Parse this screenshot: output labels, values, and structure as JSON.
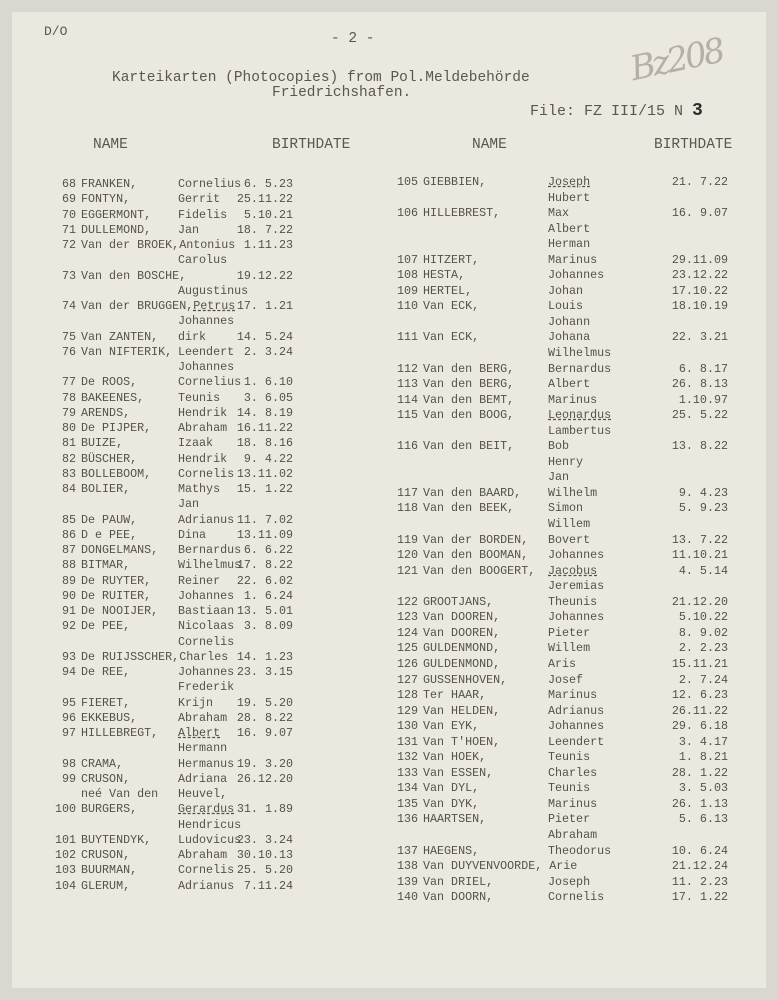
{
  "header": {
    "ref": "D/O",
    "page": "- 2 -",
    "title_line1": "Karteikarten (Photocopies) from Pol.Meldebehörde",
    "title_line2": "Friedrichshafen.",
    "file_label": "File: FZ III/15 N",
    "file_number": "3",
    "handwritten_note": "Bz208"
  },
  "columns": {
    "name": "NAME",
    "birthdate": "BIRTHDATE"
  },
  "left": [
    {
      "no": "68",
      "surname": "FRANKEN,",
      "given": "Cornelius",
      "date": "6. 5.23"
    },
    {
      "no": "69",
      "surname": "FONTYN,",
      "given": "Gerrit",
      "date": "25.11.22"
    },
    {
      "no": "70",
      "surname": "EGGERMONT,",
      "given": "Fidelis",
      "date": "5.10.21"
    },
    {
      "no": "71",
      "surname": "DULLEMOND,",
      "given": "Jan",
      "date": "18. 7.22"
    },
    {
      "no": "72",
      "surname": "Van der BROEK,",
      "given": "Antonius",
      "date": "1.11.23"
    },
    {
      "no": "",
      "surname": "",
      "given": "Carolus",
      "date": ""
    },
    {
      "no": "73",
      "surname": "Van den BOSCHE,",
      "given": "",
      "date": "19.12.22"
    },
    {
      "no": "",
      "surname": "",
      "given": "Augustinus",
      "date": ""
    },
    {
      "no": "74",
      "surname": "Van der BRUGGEN,",
      "given": "Petrus",
      "date": "17. 1.21",
      "underlined": true
    },
    {
      "no": "",
      "surname": "",
      "given": "Johannes",
      "date": ""
    },
    {
      "no": "75",
      "surname": "Van ZANTEN,",
      "given": "dirk",
      "date": "14. 5.24"
    },
    {
      "no": "76",
      "surname": "Van NIFTERIK,",
      "given": "Leendert",
      "date": "2. 3.24"
    },
    {
      "no": "",
      "surname": "",
      "given": "Johannes",
      "date": ""
    },
    {
      "no": "77",
      "surname": "De ROOS,",
      "given": "Cornelius",
      "date": "1. 6.10"
    },
    {
      "no": "78",
      "surname": "BAKEENES,",
      "given": "Teunis",
      "date": "3. 6.05"
    },
    {
      "no": "79",
      "surname": "ARENDS,",
      "given": "Hendrik",
      "date": "14. 8.19"
    },
    {
      "no": "80",
      "surname": "De PIJPER,",
      "given": "Abraham",
      "date": "16.11.22"
    },
    {
      "no": "81",
      "surname": "BUIZE,",
      "given": "Izaak",
      "date": "18. 8.16"
    },
    {
      "no": "82",
      "surname": "BÜSCHER,",
      "given": "Hendrik",
      "date": "9. 4.22"
    },
    {
      "no": "83",
      "surname": "BOLLEBOOM,",
      "given": "Cornelis",
      "date": "13.11.02"
    },
    {
      "no": "84",
      "surname": "BOLIER,",
      "given": "Mathys",
      "date": "15. 1.22"
    },
    {
      "no": "",
      "surname": "",
      "given": "Jan",
      "date": ""
    },
    {
      "no": "85",
      "surname": "De PAUW,",
      "given": "Adrianus",
      "date": "11. 7.02"
    },
    {
      "no": "86",
      "surname": "D e PEE,",
      "given": "Dina",
      "date": "13.11.09"
    },
    {
      "no": "87",
      "surname": "DONGELMANS,",
      "given": "Bernardus",
      "date": "6. 6.22"
    },
    {
      "no": "88",
      "surname": "BITMAR,",
      "given": "Wilhelmus",
      "date": "17. 8.22"
    },
    {
      "no": "89",
      "surname": "De RUYTER,",
      "given": "Reiner",
      "date": "22. 6.02"
    },
    {
      "no": "90",
      "surname": "De RUITER,",
      "given": "Johannes",
      "date": "1. 6.24"
    },
    {
      "no": "91",
      "surname": "De NOOIJER,",
      "given": "Bastiaan",
      "date": "13. 5.01"
    },
    {
      "no": "92",
      "surname": "De PEE,",
      "given": "Nicolaas",
      "date": "3. 8.09"
    },
    {
      "no": "",
      "surname": "",
      "given": "Cornelis",
      "date": ""
    },
    {
      "no": "93",
      "surname": "De RUIJSSCHER,",
      "given": "Charles",
      "date": "14. 1.23"
    },
    {
      "no": "94",
      "surname": "De REE,",
      "given": "Johannes",
      "date": "23. 3.15"
    },
    {
      "no": "",
      "surname": "",
      "given": "Frederik",
      "date": ""
    },
    {
      "no": "95",
      "surname": "FIERET,",
      "given": "Krijn",
      "date": "19. 5.20"
    },
    {
      "no": "96",
      "surname": "EKKEBUS,",
      "given": "Abraham",
      "date": "28. 8.22"
    },
    {
      "no": "97",
      "surname": "HILLEBREGT,",
      "given": "Albert",
      "date": "16. 9.07",
      "underlined": true
    },
    {
      "no": "",
      "surname": "",
      "given": "Hermann",
      "date": ""
    },
    {
      "no": "98",
      "surname": "CRAMA,",
      "given": "Hermanus",
      "date": "19. 3.20"
    },
    {
      "no": "99",
      "surname": "CRUSON,",
      "given": "Adriana",
      "date": "26.12.20"
    },
    {
      "no": "",
      "surname": "neé Van den",
      "given": "Heuvel,",
      "date": ""
    },
    {
      "no": "100",
      "surname": "BURGERS,",
      "given": "Gerardus",
      "date": "31. 1.89",
      "underlined": true
    },
    {
      "no": "",
      "surname": "",
      "given": "Hendricus",
      "date": ""
    },
    {
      "no": "101",
      "surname": "BUYTENDYK,",
      "given": "Ludovicus",
      "date": "23. 3.24"
    },
    {
      "no": "102",
      "surname": "CRUSON,",
      "given": "Abraham",
      "date": "30.10.13"
    },
    {
      "no": "103",
      "surname": "BUURMAN,",
      "given": "Cornelis",
      "date": "25. 5.20"
    },
    {
      "no": "104",
      "surname": "GLERUM,",
      "given": "Adrianus",
      "date": "7.11.24"
    }
  ],
  "right": [
    {
      "no": "105",
      "surname": "GIEBBIEN,",
      "given": "Joseph",
      "date": "21. 7.22",
      "underlined": true
    },
    {
      "no": "",
      "surname": "",
      "given": "Hubert",
      "date": ""
    },
    {
      "no": "106",
      "surname": "HILLEBREST,",
      "given": "Max",
      "date": "16. 9.07"
    },
    {
      "no": "",
      "surname": "",
      "given": "Albert",
      "date": ""
    },
    {
      "no": "",
      "surname": "",
      "given": "Herman",
      "date": ""
    },
    {
      "no": "107",
      "surname": "HITZERT,",
      "given": "Marinus",
      "date": "29.11.09"
    },
    {
      "no": "108",
      "surname": "HESTA,",
      "given": "Johannes",
      "date": "23.12.22"
    },
    {
      "no": "109",
      "surname": "HERTEL,",
      "given": "Johan",
      "date": "17.10.22"
    },
    {
      "no": "110",
      "surname": "Van ECK,",
      "given": "Louis",
      "date": "18.10.19"
    },
    {
      "no": "",
      "surname": "",
      "given": "Johann",
      "date": ""
    },
    {
      "no": "111",
      "surname": "Van ECK,",
      "given": "Johana",
      "date": "22. 3.21"
    },
    {
      "no": "",
      "surname": "",
      "given": "Wilhelmus",
      "date": ""
    },
    {
      "no": "112",
      "surname": "Van den BERG,",
      "given": "Bernardus",
      "date": "6. 8.17"
    },
    {
      "no": "113",
      "surname": "Van den BERG,",
      "given": "Albert",
      "date": "26. 8.13"
    },
    {
      "no": "114",
      "surname": "Van den BEMT,",
      "given": "Marinus",
      "date": "1.10.97"
    },
    {
      "no": "115",
      "surname": "Van den BOOG,",
      "given": "Leonardus",
      "date": "25. 5.22",
      "underlined": true
    },
    {
      "no": "",
      "surname": "",
      "given": "Lambertus",
      "date": ""
    },
    {
      "no": "116",
      "surname": "Van den BEIT,",
      "given": "Bob",
      "date": "13. 8.22"
    },
    {
      "no": "",
      "surname": "",
      "given": "Henry",
      "date": ""
    },
    {
      "no": "",
      "surname": "",
      "given": "Jan",
      "date": ""
    },
    {
      "no": "117",
      "surname": "Van den BAARD,",
      "given": "Wilhelm",
      "date": "9. 4.23"
    },
    {
      "no": "118",
      "surname": "Van den BEEK,",
      "given": "Simon",
      "date": "5. 9.23"
    },
    {
      "no": "",
      "surname": "",
      "given": "Willem",
      "date": ""
    },
    {
      "no": "119",
      "surname": "Van der BORDEN,",
      "given": "Bovert",
      "date": "13. 7.22"
    },
    {
      "no": "120",
      "surname": "Van den BOOMAN,",
      "given": "Johannes",
      "date": "11.10.21"
    },
    {
      "no": "121",
      "surname": "Van den BOOGERT,",
      "given": "Jacobus",
      "date": "4. 5.14",
      "underlined": true
    },
    {
      "no": "",
      "surname": "",
      "given": "Jeremias",
      "date": ""
    },
    {
      "no": "122",
      "surname": "GROOTJANS,",
      "given": "Theunis",
      "date": "21.12.20"
    },
    {
      "no": "123",
      "surname": "Van DOOREN,",
      "given": "Johannes",
      "date": "5.10.22"
    },
    {
      "no": "124",
      "surname": "Van DOOREN,",
      "given": "Pieter",
      "date": "8. 9.02"
    },
    {
      "no": "125",
      "surname": "GULDENMOND,",
      "given": "Willem",
      "date": "2. 2.23"
    },
    {
      "no": "126",
      "surname": "GULDENMOND,",
      "given": "Aris",
      "date": "15.11.21"
    },
    {
      "no": "127",
      "surname": "GUSSENHOVEN,",
      "given": "Josef",
      "date": "2. 7.24"
    },
    {
      "no": "128",
      "surname": "Ter HAAR,",
      "given": "Marinus",
      "date": "12. 6.23"
    },
    {
      "no": "129",
      "surname": "Van HELDEN,",
      "given": "Adrianus",
      "date": "26.11.22"
    },
    {
      "no": "130",
      "surname": "Van EYK,",
      "given": "Johannes",
      "date": "29. 6.18"
    },
    {
      "no": "131",
      "surname": "Van T'HOEN,",
      "given": "Leendert",
      "date": "3. 4.17"
    },
    {
      "no": "132",
      "surname": "Van HOEK,",
      "given": "Teunis",
      "date": "1. 8.21"
    },
    {
      "no": "133",
      "surname": "Van ESSEN,",
      "given": "Charles",
      "date": "28. 1.22"
    },
    {
      "no": "134",
      "surname": "Van DYL,",
      "given": "Teunis",
      "date": "3. 5.03"
    },
    {
      "no": "135",
      "surname": "Van DYK,",
      "given": "Marinus",
      "date": "26. 1.13"
    },
    {
      "no": "136",
      "surname": "HAARTSEN,",
      "given": "Pieter",
      "date": "5. 6.13"
    },
    {
      "no": "",
      "surname": "",
      "given": "Abraham",
      "date": ""
    },
    {
      "no": "137",
      "surname": "HAEGENS,",
      "given": "Theodorus",
      "date": "10. 6.24"
    },
    {
      "no": "138",
      "surname": "Van DUYVENVOORDE, ",
      "given": "Arie",
      "date": "21.12.24"
    },
    {
      "no": "139",
      "surname": "Van DRIEL,",
      "given": "Joseph",
      "date": "11. 2.23"
    },
    {
      "no": "140",
      "surname": "Van DOORN,",
      "given": "Cornelis",
      "date": "17. 1.22"
    }
  ]
}
